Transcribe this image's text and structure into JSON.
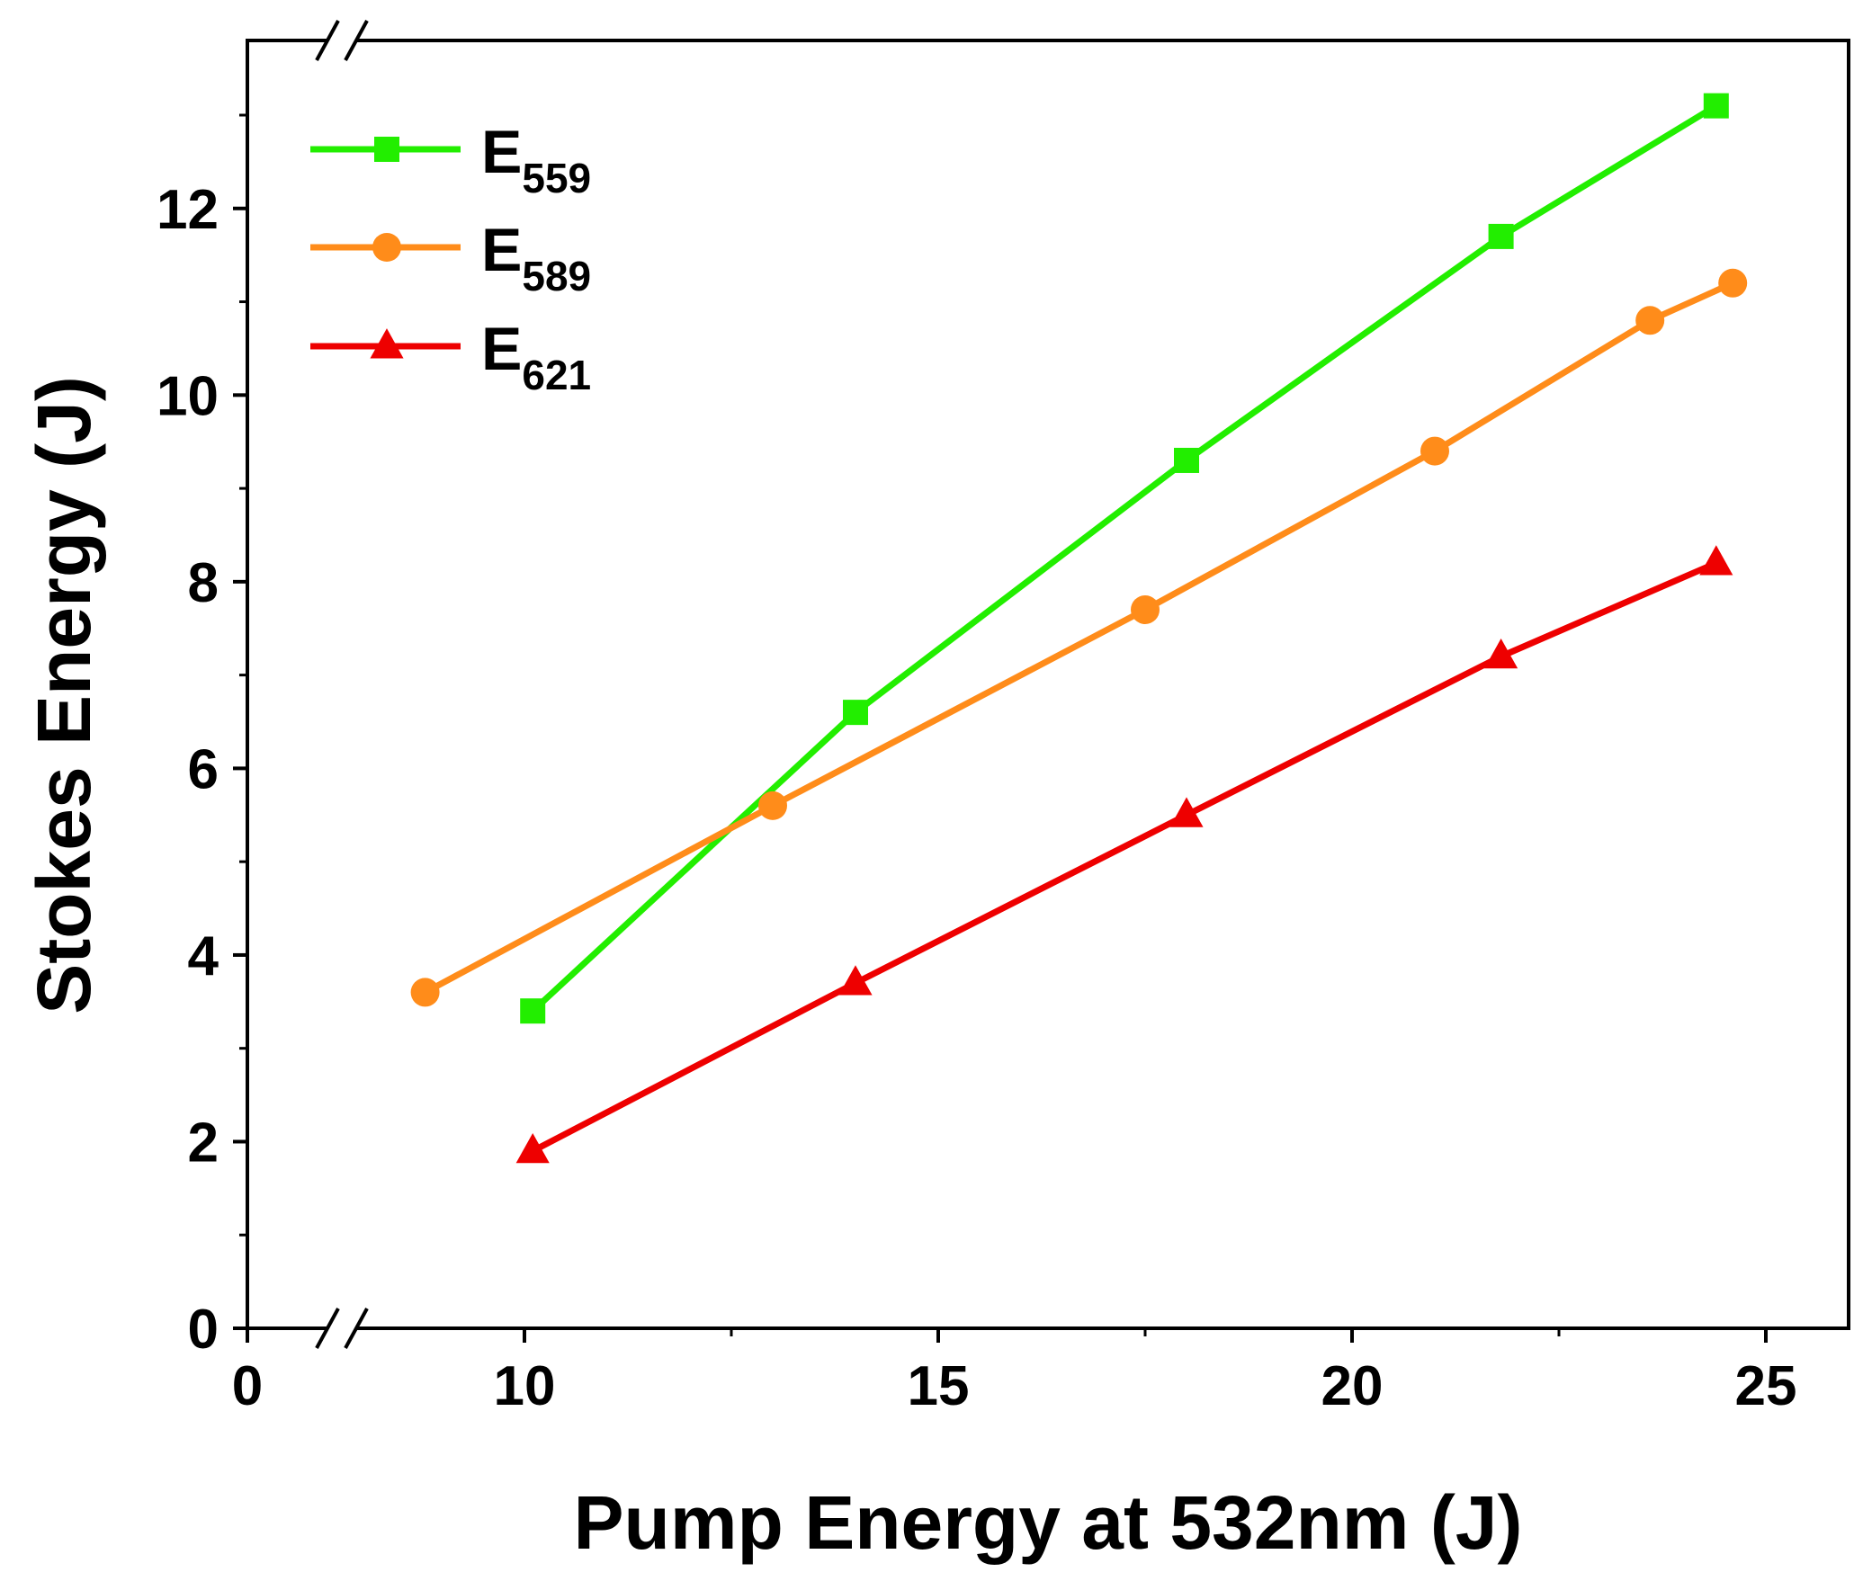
{
  "chart_data": {
    "type": "line",
    "title": "",
    "xlabel": "Pump Energy at 532nm (J)",
    "ylabel": "Stokes Energy (J)",
    "xlim": [
      0,
      26
    ],
    "ylim": [
      0,
      13.8
    ],
    "x_break": [
      0,
      10
    ],
    "xticks": [
      0,
      10,
      15,
      20,
      25
    ],
    "xtick_labels": [
      "0",
      "10",
      "15",
      "20",
      "25"
    ],
    "xminor": [
      12.5,
      17.5,
      22.5
    ],
    "yticks": [
      0,
      2,
      4,
      6,
      8,
      10,
      12
    ],
    "ytick_labels": [
      "0",
      "2",
      "4",
      "6",
      "8",
      "10",
      "12"
    ],
    "yminor": [
      1,
      3,
      5,
      7,
      9,
      11,
      13
    ],
    "grid": false,
    "legend_position": "top-left",
    "series": [
      {
        "name": "E559",
        "label_main": "E",
        "label_sub": "559",
        "color": "#22ee00",
        "marker": "square",
        "x": [
          10.1,
          14.0,
          18.0,
          21.8,
          24.4
        ],
        "y": [
          3.4,
          6.6,
          9.3,
          11.7,
          13.1
        ]
      },
      {
        "name": "E589",
        "label_main": "E",
        "label_sub": "589",
        "color": "#ff8c1a",
        "marker": "circle",
        "x": [
          8.8,
          13.0,
          17.5,
          21.0,
          23.6,
          24.6
        ],
        "y": [
          3.6,
          5.6,
          7.7,
          9.4,
          10.8,
          11.2
        ]
      },
      {
        "name": "E621",
        "label_main": "E",
        "label_sub": "621",
        "color": "#ee0000",
        "marker": "triangle",
        "x": [
          10.1,
          14.0,
          18.0,
          21.8,
          24.4
        ],
        "y": [
          1.9,
          3.7,
          5.5,
          7.2,
          8.2
        ]
      }
    ]
  }
}
